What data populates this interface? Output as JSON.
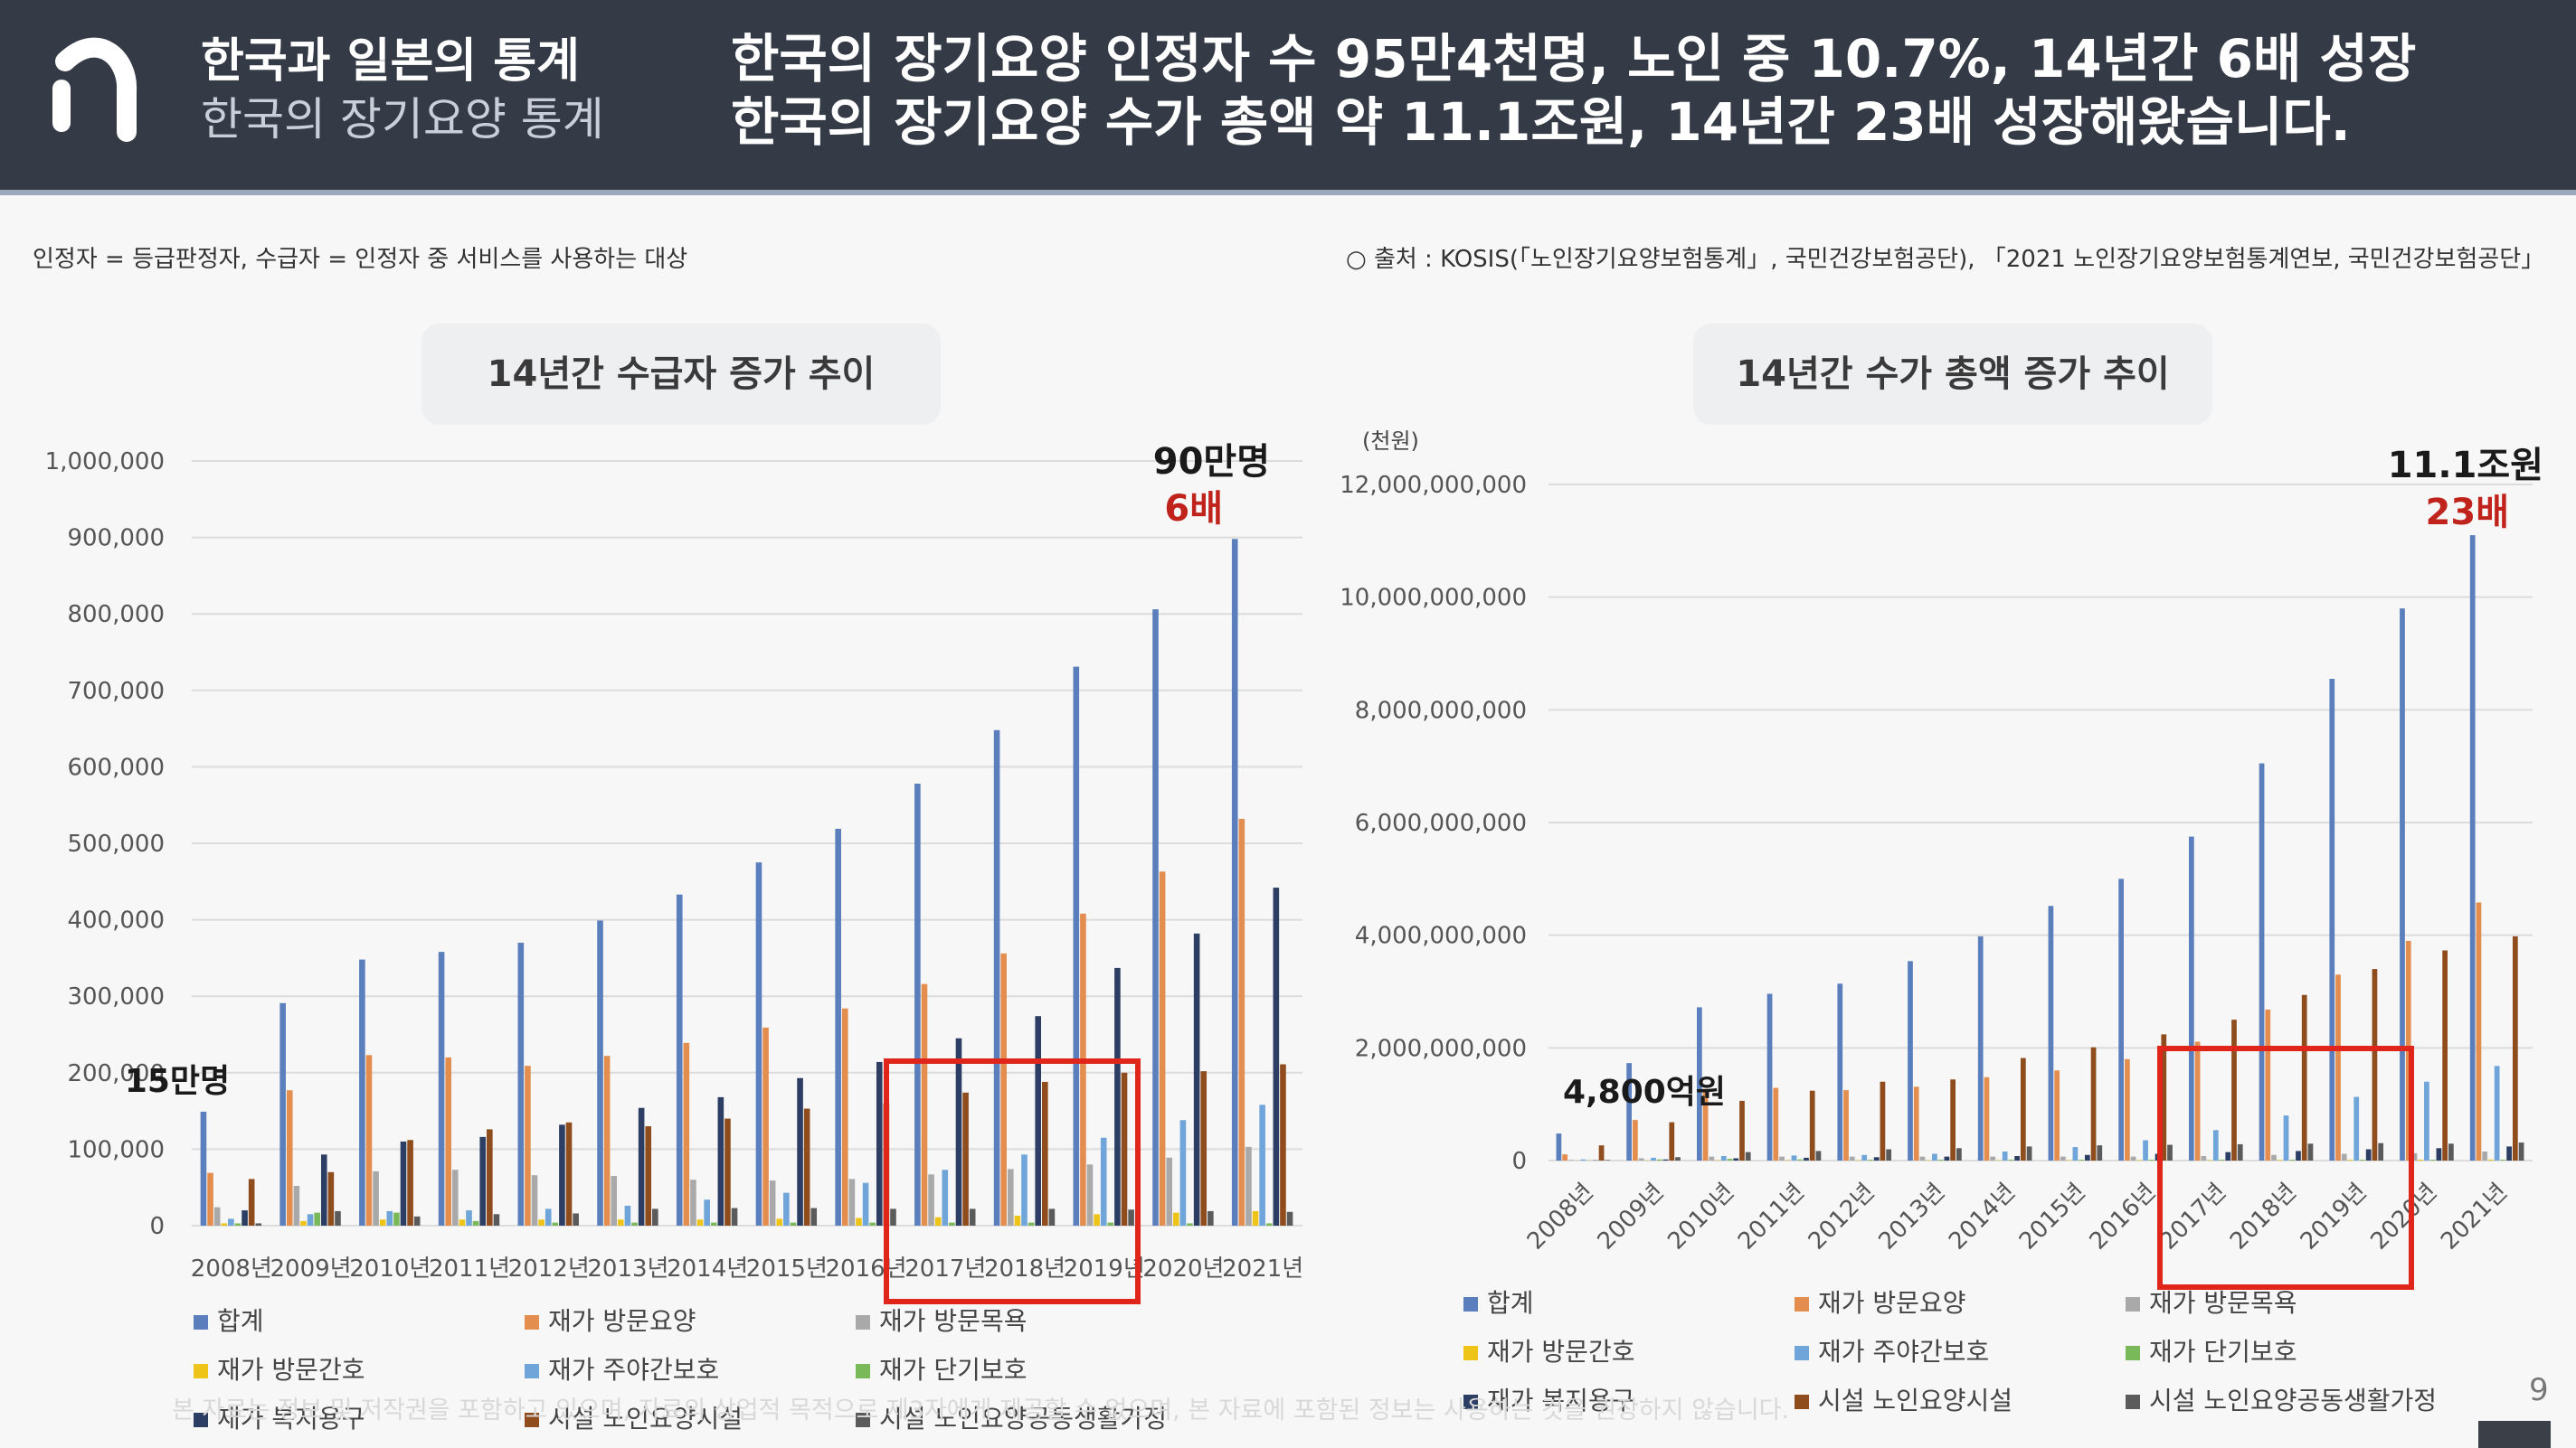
{
  "header": {
    "title_main": "한국과 일본의 통계",
    "title_sub": "한국의 장기요양 통계",
    "headline_1": "한국의 장기요양 인정자 수 95만4천명, 노인 중 10.7%, 14년간 6배 성장",
    "headline_2": "한국의 장기요양 수가 총액 약 11.1조원, 14년간 23배 성장해왔습니다."
  },
  "notes": {
    "definition": "인정자 = 등급판정자, 수급자 = 인정자 중 서비스를 사용하는 대상",
    "source": "○ 출처 : KOSIS(「노인장기요양보험통계」, 국민건강보험공단), 「2021 노인장기요양보험통계연보, 국민건강보험공단」"
  },
  "footer": {
    "disclaimer": "본 자료는 정보 및 저작권을 포함하고 있으며, 자료의 상업적 목적으로 제3자에게 제공할 수 없으며, 본 자료에 포함된 정보는 사용하는 것을 권장하지 않습니다.",
    "page_number": "9"
  },
  "colors": {
    "header_bg": "#353b46",
    "highlight_red": "#e0261b",
    "annotation_red": "#c0231b",
    "series": [
      "#5a7fbc",
      "#e38d4e",
      "#a9a9a9",
      "#efc419",
      "#6fa5d8",
      "#7ab95a",
      "#2c3e63",
      "#8f4d1e",
      "#5b5b5b"
    ]
  },
  "chart_data": [
    {
      "type": "bar",
      "title": "14년간 수급자 증가 추이",
      "unit_label": "",
      "categories": [
        "2008년",
        "2009년",
        "2010년",
        "2011년",
        "2012년",
        "2013년",
        "2014년",
        "2015년",
        "2016년",
        "2017년",
        "2018년",
        "2019년",
        "2020년",
        "2021년"
      ],
      "y_ticks": [
        "0",
        "100,000",
        "200,000",
        "300,000",
        "400,000",
        "500,000",
        "600,000",
        "700,000",
        "800,000",
        "900,000",
        "1,000,000"
      ],
      "ylim": [
        0,
        1000000
      ],
      "grid": true,
      "legend_position": "bottom",
      "annotations": [
        {
          "text": "90만명",
          "color": "dark"
        },
        {
          "text": "6배",
          "color": "red"
        },
        {
          "text": "15만명",
          "color": "dark"
        }
      ],
      "highlight_range": [
        "2017년",
        "2019년"
      ],
      "series": [
        {
          "name": "합계",
          "values": [
            149000,
            291000,
            348000,
            358000,
            370000,
            399000,
            433000,
            475000,
            519000,
            578000,
            648000,
            731000,
            806000,
            898000
          ]
        },
        {
          "name": "재가 방문요양",
          "values": [
            69000,
            177000,
            223000,
            220000,
            209000,
            222000,
            239000,
            259000,
            284000,
            316000,
            356000,
            408000,
            463000,
            532000
          ]
        },
        {
          "name": "재가 방문목욕",
          "values": [
            24000,
            52000,
            71000,
            73000,
            66000,
            65000,
            60000,
            59000,
            61000,
            67000,
            74000,
            80000,
            89000,
            103000
          ]
        },
        {
          "name": "재가 방문간호",
          "values": [
            3000,
            6000,
            8000,
            8000,
            8000,
            8000,
            8000,
            9000,
            10000,
            11000,
            13000,
            15000,
            17000,
            19000
          ]
        },
        {
          "name": "재가 주야간보호",
          "values": [
            9000,
            15000,
            19000,
            20000,
            22000,
            26000,
            34000,
            43000,
            56000,
            73000,
            93000,
            115000,
            138000,
            158000
          ]
        },
        {
          "name": "재가 단기보호",
          "values": [
            3000,
            17000,
            17000,
            6000,
            4000,
            4000,
            4000,
            4000,
            4000,
            4000,
            4000,
            4000,
            3000,
            3000
          ]
        },
        {
          "name": "재가 복지용구",
          "values": [
            20000,
            93000,
            110000,
            116000,
            132000,
            154000,
            168000,
            193000,
            214000,
            245000,
            274000,
            337000,
            382000,
            442000
          ]
        },
        {
          "name": "시설 노인요양시설",
          "values": [
            61000,
            70000,
            112000,
            126000,
            135000,
            130000,
            140000,
            153000,
            160000,
            174000,
            188000,
            200000,
            202000,
            211000
          ]
        },
        {
          "name": "시설 노인요양공동생활가정",
          "values": [
            3000,
            19000,
            12000,
            15000,
            16000,
            22000,
            23000,
            23000,
            22000,
            22000,
            22000,
            21000,
            19000,
            18000
          ]
        }
      ]
    },
    {
      "type": "bar",
      "title": "14년간 수가 총액 증가 추이",
      "unit_label": "(천원)",
      "categories": [
        "2008년",
        "2009년",
        "2010년",
        "2011년",
        "2012년",
        "2013년",
        "2014년",
        "2015년",
        "2016년",
        "2017년",
        "2018년",
        "2019년",
        "2020년",
        "2021년"
      ],
      "y_ticks": [
        "0",
        "2,000,000,000",
        "4,000,000,000",
        "6,000,000,000",
        "8,000,000,000",
        "10,000,000,000",
        "12,000,000,000"
      ],
      "ylim": [
        0,
        12000000000
      ],
      "grid": true,
      "legend_position": "bottom",
      "annotations": [
        {
          "text": "11.1조원",
          "color": "dark"
        },
        {
          "text": "23배",
          "color": "red"
        },
        {
          "text": "4,800억원",
          "color": "dark"
        }
      ],
      "highlight_range": [
        "2017년",
        "2020년"
      ],
      "series": [
        {
          "name": "합계",
          "values": [
            480000000,
            1730000000,
            2720000000,
            2960000000,
            3140000000,
            3540000000,
            3980000000,
            4520000000,
            5000000000,
            5750000000,
            7050000000,
            8550000000,
            9800000000,
            11100000000
          ]
        },
        {
          "name": "재가 방문요양",
          "values": [
            110000000,
            720000000,
            1270000000,
            1290000000,
            1250000000,
            1310000000,
            1480000000,
            1600000000,
            1800000000,
            2110000000,
            2680000000,
            3300000000,
            3900000000,
            4580000000
          ]
        },
        {
          "name": "재가 방문목욕",
          "values": [
            10000000,
            40000000,
            70000000,
            70000000,
            70000000,
            70000000,
            70000000,
            70000000,
            70000000,
            80000000,
            100000000,
            120000000,
            130000000,
            160000000
          ]
        },
        {
          "name": "재가 방문간호",
          "values": [
            2000000,
            5000000,
            7000000,
            7000000,
            7000000,
            7000000,
            7000000,
            8000000,
            9000000,
            10000000,
            12000000,
            14000000,
            16000000,
            18000000
          ]
        },
        {
          "name": "재가 주야간보호",
          "values": [
            20000000,
            50000000,
            80000000,
            90000000,
            100000000,
            120000000,
            160000000,
            240000000,
            360000000,
            540000000,
            800000000,
            1130000000,
            1400000000,
            1680000000
          ]
        },
        {
          "name": "재가 단기보호",
          "values": [
            3000000,
            20000000,
            30000000,
            20000000,
            15000000,
            15000000,
            15000000,
            15000000,
            15000000,
            15000000,
            15000000,
            15000000,
            15000000,
            15000000
          ]
        },
        {
          "name": "재가 복지용구",
          "values": [
            5000000,
            20000000,
            40000000,
            50000000,
            60000000,
            70000000,
            80000000,
            100000000,
            120000000,
            150000000,
            170000000,
            200000000,
            220000000,
            250000000
          ]
        },
        {
          "name": "시설 노인요양시설",
          "values": [
            270000000,
            680000000,
            1060000000,
            1240000000,
            1400000000,
            1440000000,
            1820000000,
            2010000000,
            2240000000,
            2500000000,
            2940000000,
            3400000000,
            3730000000,
            3980000000
          ]
        },
        {
          "name": "시설 노인요양공동생활가정",
          "values": [
            10000000,
            60000000,
            150000000,
            170000000,
            200000000,
            220000000,
            250000000,
            270000000,
            280000000,
            290000000,
            300000000,
            310000000,
            300000000,
            320000000
          ]
        }
      ]
    }
  ]
}
